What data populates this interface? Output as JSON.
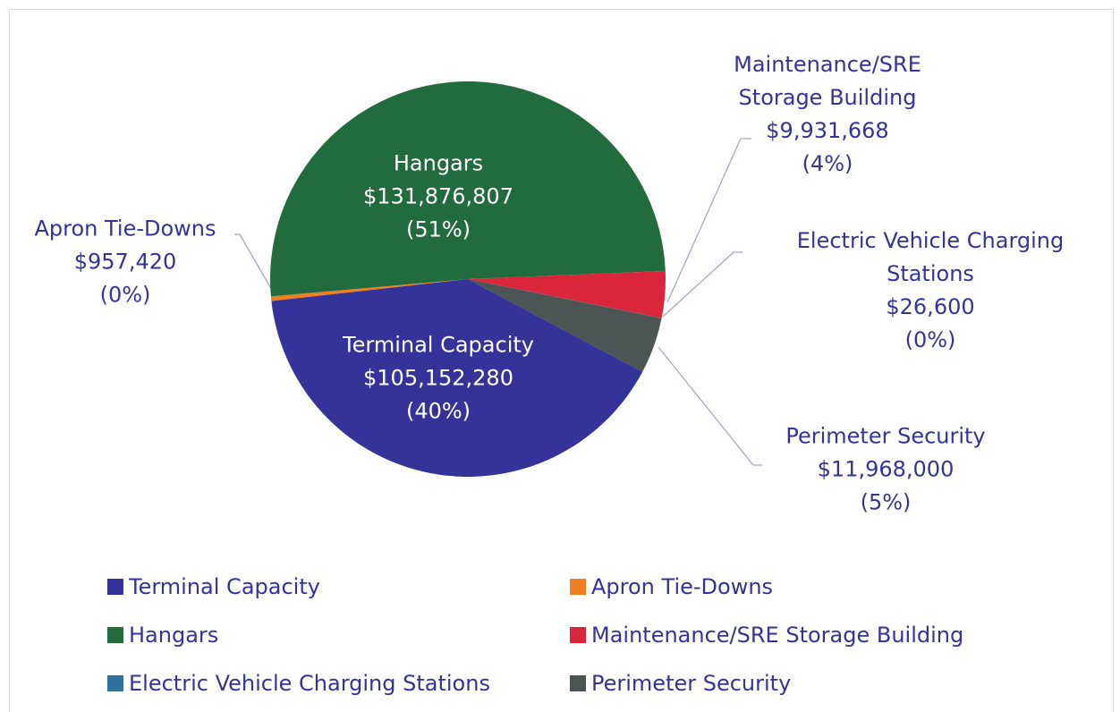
{
  "chart_data": {
    "type": "pie",
    "categories": [
      "Terminal Capacity",
      "Apron Tie-Downs",
      "Hangars",
      "Maintenance/SRE Storage Building",
      "Electric Vehicle Charging Stations",
      "Perimeter Security"
    ],
    "values": [
      105152280,
      957420,
      131876807,
      9931668,
      26600,
      11968000
    ],
    "value_labels": [
      "$105,152,280",
      "$957,420",
      "$131,876,807",
      "$9,931,668",
      "$26,600",
      "$11,968,000"
    ],
    "percent_labels": [
      "(40%)",
      "(0%)",
      "(51%)",
      "(4%)",
      "(0%)",
      "(5%)"
    ],
    "colors": [
      "#333399",
      "#f07f22",
      "#226b3c",
      "#d9263c",
      "#2f72a0",
      "#4d5454"
    ],
    "legend": "bottom"
  }
}
